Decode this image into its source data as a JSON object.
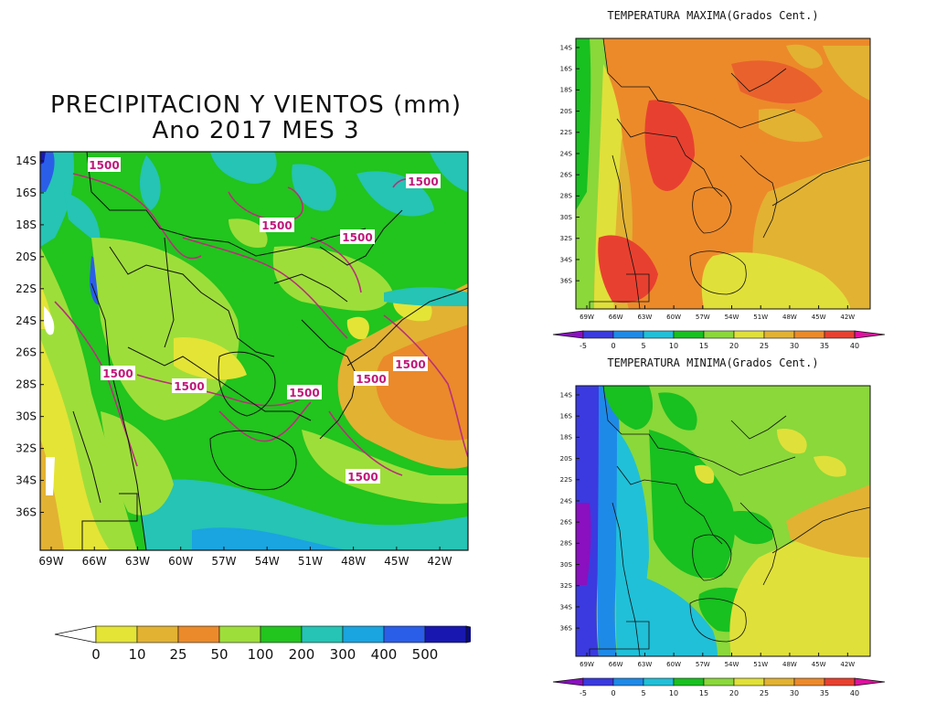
{
  "main_panel": {
    "title_line1": "PRECIPITACION Y VIENTOS (mm)",
    "title_line2": "Ano 2017 MES 3",
    "lat_labels": [
      "14S",
      "16S",
      "18S",
      "20S",
      "22S",
      "24S",
      "26S",
      "28S",
      "30S",
      "32S",
      "34S",
      "36S"
    ],
    "lon_labels": [
      "69W",
      "66W",
      "63W",
      "60W",
      "57W",
      "54W",
      "51W",
      "48W",
      "45W",
      "42W"
    ],
    "contour_labels": [
      "1500",
      "1500",
      "1500",
      "1500",
      "1500",
      "1500",
      "1500",
      "1500",
      "1500",
      "1500"
    ],
    "legend": {
      "labels": [
        "0",
        "10",
        "25",
        "50",
        "100",
        "200",
        "300",
        "400",
        "500"
      ],
      "colors": [
        "#ffffff",
        "#e4e436",
        "#e2b233",
        "#eb8a2a",
        "#9ede3a",
        "#22c41e",
        "#25c4b4",
        "#1aa4e0",
        "#2a5ee8",
        "#1818b0",
        "#0a0a80"
      ]
    }
  },
  "tmax_panel": {
    "title": "TEMPERATURA MAXIMA(Grados Cent.)",
    "lat_labels": [
      "14S",
      "16S",
      "18S",
      "20S",
      "22S",
      "24S",
      "26S",
      "28S",
      "30S",
      "32S",
      "34S",
      "36S"
    ],
    "lon_labels": [
      "69W",
      "66W",
      "63W",
      "60W",
      "57W",
      "54W",
      "51W",
      "48W",
      "45W",
      "42W"
    ],
    "legend": {
      "labels": [
        "-5",
        "0",
        "5",
        "10",
        "15",
        "20",
        "25",
        "30",
        "35",
        "40"
      ],
      "colors": [
        "#8a10c0",
        "#3a3ae0",
        "#1e8ae8",
        "#20c0d8",
        "#18c020",
        "#8ad83a",
        "#e0e03a",
        "#e2b232",
        "#ec8a2a",
        "#e84030",
        "#e010a0"
      ]
    }
  },
  "tmin_panel": {
    "title": "TEMPERATURA MINIMA(Grados Cent.)",
    "lat_labels": [
      "14S",
      "16S",
      "18S",
      "20S",
      "22S",
      "24S",
      "26S",
      "28S",
      "30S",
      "32S",
      "34S",
      "36S"
    ],
    "lon_labels": [
      "69W",
      "66W",
      "63W",
      "60W",
      "57W",
      "54W",
      "51W",
      "48W",
      "45W",
      "42W"
    ],
    "legend": {
      "labels": [
        "-5",
        "0",
        "5",
        "10",
        "15",
        "20",
        "25",
        "30",
        "35",
        "40"
      ],
      "colors": [
        "#8a10c0",
        "#3a3ae0",
        "#1e8ae8",
        "#20c0d8",
        "#18c020",
        "#8ad83a",
        "#e0e03a",
        "#e2b232",
        "#ec8a2a",
        "#e84030",
        "#e010a0"
      ]
    }
  }
}
